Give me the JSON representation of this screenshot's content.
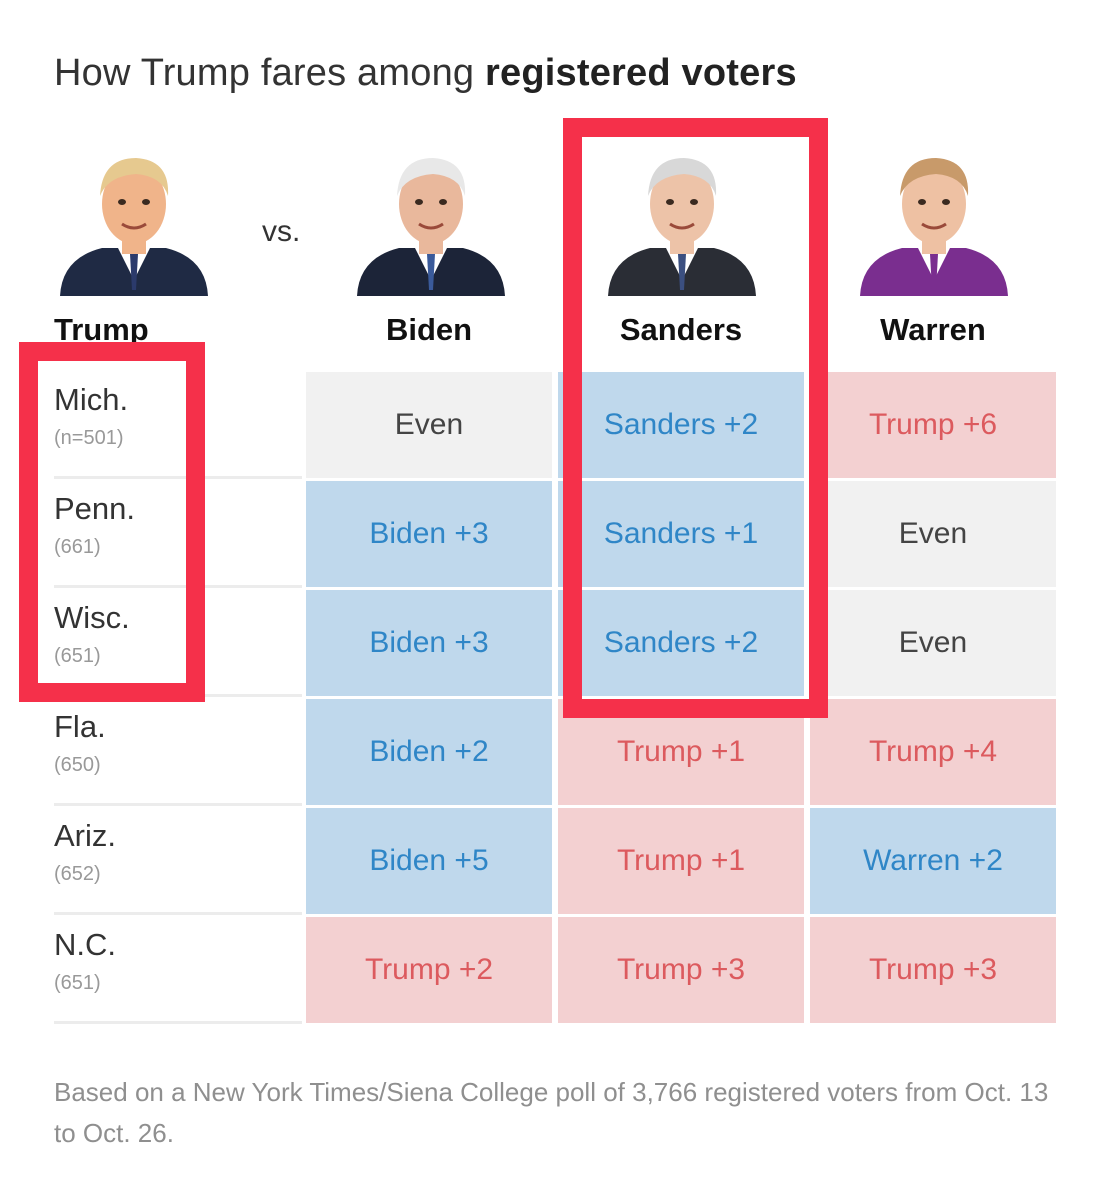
{
  "title": {
    "plain": "How Trump fares among ",
    "bold": "registered voters"
  },
  "vs_label": "vs.",
  "trump_label": "Trump",
  "candidates": [
    "Biden",
    "Sanders",
    "Warren"
  ],
  "portraits": [
    {
      "name": "Trump",
      "hair": "#e6c98f",
      "skin": "#f0b48a",
      "suit": "#1f2a44",
      "tie": "#2b3a6b"
    },
    {
      "name": "Biden",
      "hair": "#e8e8e8",
      "skin": "#e9b89c",
      "suit": "#1c2438",
      "tie": "#3a5a9a"
    },
    {
      "name": "Sanders",
      "hair": "#d8d8d8",
      "skin": "#edc3a8",
      "suit": "#2a2d35",
      "tie": "#3b4f80"
    },
    {
      "name": "Warren",
      "hair": "#c89a6a",
      "skin": "#eec1a3",
      "suit": "#7a2e8f",
      "tie": "#7a2e8f"
    }
  ],
  "states": [
    {
      "name": "Mich.",
      "n": "(n=501)"
    },
    {
      "name": "Penn.",
      "n": "(661)"
    },
    {
      "name": "Wisc.",
      "n": "(651)"
    },
    {
      "name": "Fla.",
      "n": "(650)"
    },
    {
      "name": "Ariz.",
      "n": "(652)"
    },
    {
      "name": "N.C.",
      "n": "(651)"
    }
  ],
  "colors": {
    "dem_bg": "#bfd8ec",
    "dem_text": "#2f86c7",
    "rep_bg": "#f3d0d1",
    "rep_text": "#dc5a5e",
    "even_bg": "#f1f1f1",
    "highlight": "#f5304a"
  },
  "chart_data": {
    "type": "table",
    "title": "How Trump fares among registered voters",
    "columns": [
      "Biden",
      "Sanders",
      "Warren"
    ],
    "rows": [
      "Mich.",
      "Penn.",
      "Wisc.",
      "Fla.",
      "Ariz.",
      "N.C."
    ],
    "cells": [
      [
        {
          "label": "Even",
          "side": "even"
        },
        {
          "label": "Sanders +2",
          "side": "dem"
        },
        {
          "label": "Trump +6",
          "side": "rep"
        }
      ],
      [
        {
          "label": "Biden +3",
          "side": "dem"
        },
        {
          "label": "Sanders +1",
          "side": "dem"
        },
        {
          "label": "Even",
          "side": "even"
        }
      ],
      [
        {
          "label": "Biden +3",
          "side": "dem"
        },
        {
          "label": "Sanders +2",
          "side": "dem"
        },
        {
          "label": "Even",
          "side": "even"
        }
      ],
      [
        {
          "label": "Biden +2",
          "side": "dem"
        },
        {
          "label": "Trump +1",
          "side": "rep"
        },
        {
          "label": "Trump +4",
          "side": "rep"
        }
      ],
      [
        {
          "label": "Biden +5",
          "side": "dem"
        },
        {
          "label": "Trump +1",
          "side": "rep"
        },
        {
          "label": "Warren +2",
          "side": "dem"
        }
      ],
      [
        {
          "label": "Trump +2",
          "side": "rep"
        },
        {
          "label": "Trump +3",
          "side": "rep"
        },
        {
          "label": "Trump +3",
          "side": "rep"
        }
      ]
    ]
  },
  "footnote": "Based on a New York Times/Siena College poll of 3,766 registered voters from Oct. 13 to Oct. 26."
}
